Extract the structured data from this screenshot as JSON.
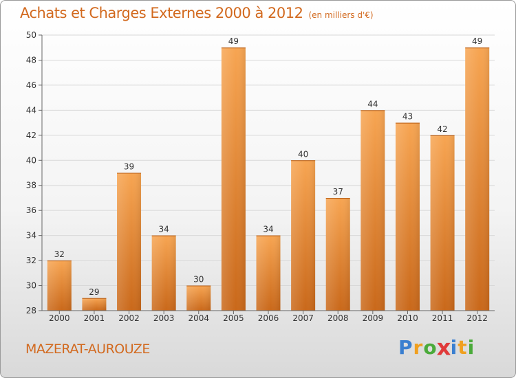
{
  "title": "Achats et Charges Externes 2000 à 2012",
  "subtitle": "(en milliers d'€)",
  "commune": "MAZERAT-AUROUZE",
  "logo": {
    "letters": [
      "P",
      "r",
      "o",
      "x",
      "i",
      "t",
      "i"
    ],
    "colors": [
      "#3a7fd0",
      "#f0a020",
      "#4aaa3a",
      "#e03a3a",
      "#3a7fd0",
      "#f0a020",
      "#4aaa3a"
    ]
  },
  "colors": {
    "bar_top": "#f7a552",
    "bar_bottom": "#c9681a",
    "text": "#d2691e",
    "grid": "#d8d8d8"
  },
  "chart_data": {
    "type": "bar",
    "categories": [
      "2000",
      "2001",
      "2002",
      "2003",
      "2004",
      "2005",
      "2006",
      "2007",
      "2008",
      "2009",
      "2010",
      "2011",
      "2012"
    ],
    "values": [
      32,
      29,
      39,
      34,
      30,
      49,
      34,
      40,
      37,
      44,
      43,
      42,
      49
    ],
    "ylim": [
      28,
      50
    ],
    "yticks": [
      28,
      30,
      32,
      34,
      36,
      38,
      40,
      42,
      44,
      46,
      48,
      50
    ],
    "grid": true,
    "title": "Achats et Charges Externes 2000 à 2012",
    "xlabel": "",
    "ylabel": ""
  }
}
